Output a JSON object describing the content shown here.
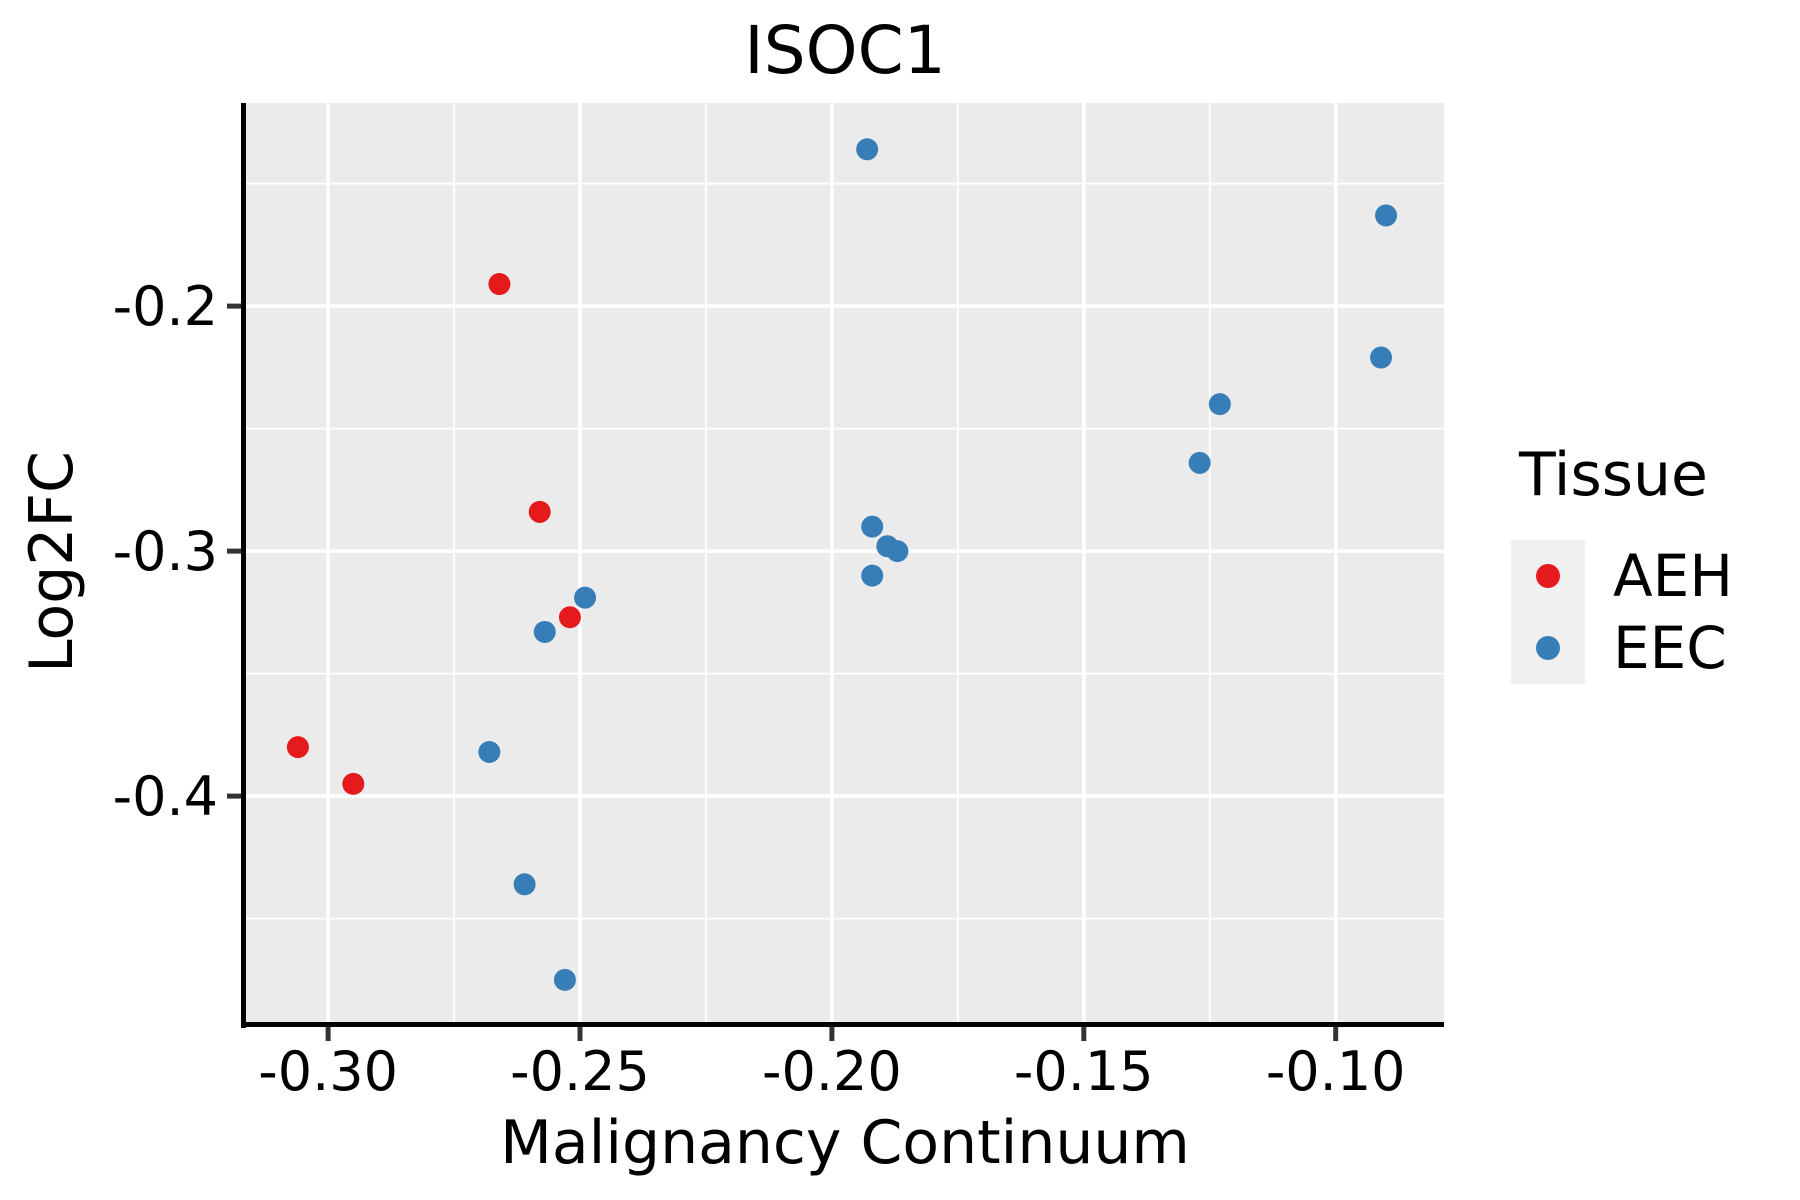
{
  "figure": {
    "title": "ISOC1"
  },
  "chart_data": {
    "type": "scatter",
    "title": "ISOC1",
    "xlabel": "Malignancy Continuum",
    "ylabel": "Log2FC",
    "xlim": [
      -0.3163,
      -0.0785
    ],
    "ylim": [
      -0.4922,
      -0.1171
    ],
    "grid": true,
    "panel_background": "#EBEBEB",
    "grid_color": "#FFFFFF",
    "axis_line_color": "#000000",
    "tick_color": "#333333",
    "text_color": "#000000",
    "x_major_ticks": [
      -0.3,
      -0.25,
      -0.2,
      -0.15,
      -0.1
    ],
    "x_tick_labels": [
      "-0.30",
      "-0.25",
      "-0.20",
      "-0.15",
      "-0.10"
    ],
    "x_minor_ticks": [
      -0.275,
      -0.225,
      -0.175,
      -0.125
    ],
    "y_major_ticks": [
      -0.2,
      -0.3,
      -0.4
    ],
    "y_tick_labels": [
      "-0.2",
      "-0.3",
      "-0.4"
    ],
    "y_minor_ticks": [
      -0.15,
      -0.25,
      -0.35,
      -0.45
    ],
    "legend": {
      "title": "Tissue",
      "position": "right",
      "entries": [
        {
          "label": "AEH",
          "color": "#E41A1C"
        },
        {
          "label": "EEC",
          "color": "#377EB8"
        }
      ]
    },
    "series": [
      {
        "name": "AEH",
        "color": "#E41A1C",
        "points": [
          [
            -0.266,
            -0.191
          ],
          [
            -0.258,
            -0.284
          ],
          [
            -0.252,
            -0.327
          ],
          [
            -0.306,
            -0.38
          ],
          [
            -0.295,
            -0.395
          ]
        ]
      },
      {
        "name": "EEC",
        "color": "#377EB8",
        "points": [
          [
            -0.193,
            -0.136
          ],
          [
            -0.09,
            -0.163
          ],
          [
            -0.091,
            -0.221
          ],
          [
            -0.123,
            -0.24
          ],
          [
            -0.127,
            -0.264
          ],
          [
            -0.192,
            -0.29
          ],
          [
            -0.189,
            -0.298
          ],
          [
            -0.187,
            -0.3
          ],
          [
            -0.192,
            -0.31
          ],
          [
            -0.249,
            -0.319
          ],
          [
            -0.257,
            -0.333
          ],
          [
            -0.268,
            -0.382
          ],
          [
            -0.261,
            -0.436
          ],
          [
            -0.253,
            -0.475
          ]
        ]
      }
    ]
  }
}
